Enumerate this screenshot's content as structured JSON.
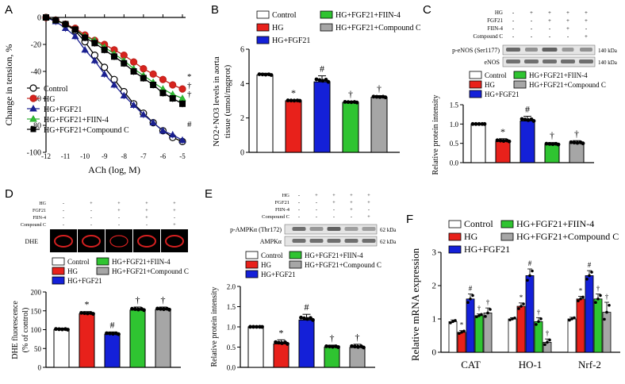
{
  "colors": {
    "control": "#ffffff",
    "hg": "#e8211b",
    "hg_fgf21": "#1420d8",
    "hg_fgf21_fiin4": "#2fc431",
    "hg_fgf21_compc": "#a6a6a6",
    "blot_bg": "#e4e4e4"
  },
  "legend_labels": [
    "Control",
    "HG",
    "HG+FGF21",
    "HG+FGF21+FIIN-4",
    "HG+FGF21+Compound C"
  ],
  "treatment_table": {
    "row_labels": [
      "HG",
      "FGF21",
      "FIIN-4",
      "Compound C"
    ],
    "columns": [
      [
        "-",
        "-",
        "-",
        "-"
      ],
      [
        "+",
        "-",
        "-",
        "-"
      ],
      [
        "+",
        "+",
        "-",
        "-"
      ],
      [
        "+",
        "+",
        "+",
        "-"
      ],
      [
        "+",
        "+",
        "-",
        "+"
      ]
    ]
  },
  "chart_data": [
    {
      "panel": "A",
      "type": "line",
      "xlabel": "ACh (log, M)",
      "ylabel": "Change in tension, %",
      "xlim": [
        -12,
        -5
      ],
      "ylim": [
        -100,
        0
      ],
      "x_ticks": [
        "-12",
        "-11",
        "-10",
        "-9",
        "-8",
        "-7",
        "-6",
        "-5"
      ],
      "y_ticks": [
        "0",
        "-20",
        "-40",
        "-60",
        "-80",
        "-100"
      ],
      "x": [
        -12,
        -11.5,
        -11,
        -10.5,
        -10,
        -9.5,
        -9,
        -8.5,
        -8,
        -7.5,
        -7,
        -6.5,
        -6,
        -5.5,
        -5
      ],
      "series": [
        {
          "name": "Control",
          "marker": "circle-open",
          "values": [
            0,
            -2,
            -5,
            -10,
            -18,
            -28,
            -37,
            -46,
            -55,
            -64,
            -71,
            -78,
            -84,
            -89,
            -92
          ],
          "annotation": "#"
        },
        {
          "name": "HG",
          "marker": "circle",
          "values": [
            0,
            -2,
            -5,
            -8,
            -13,
            -17,
            -20,
            -24,
            -28,
            -33,
            -38,
            -42,
            -46,
            -50,
            -53
          ],
          "annotation": "*"
        },
        {
          "name": "HG+FGF21",
          "marker": "triangle",
          "values": [
            0,
            -3,
            -8,
            -14,
            -24,
            -32,
            -42,
            -50,
            -58,
            -65,
            -72,
            -78,
            -84,
            -87,
            -91
          ]
        },
        {
          "name": "HG+FGF21+FIIN-4",
          "marker": "triangle",
          "values": [
            0,
            -2,
            -5,
            -9,
            -14,
            -17,
            -22,
            -27,
            -32,
            -38,
            -43,
            -48,
            -53,
            -57,
            -60
          ],
          "annotation": "†"
        },
        {
          "name": "HG+FGF21+Compound C",
          "marker": "square",
          "values": [
            0,
            -2,
            -5,
            -9,
            -15,
            -19,
            -24,
            -29,
            -34,
            -40,
            -45,
            -50,
            -56,
            -60,
            -64
          ],
          "annotation": "†"
        }
      ]
    },
    {
      "panel": "B",
      "type": "bar",
      "ylabel": "NO2+NO3 levels in aorta tissue (umol/mgprot)",
      "ylim": [
        0,
        6
      ],
      "y_ticks": [
        "0",
        "2",
        "4",
        "6"
      ],
      "categories": [
        "Control",
        "HG",
        "HG+FGF21",
        "HG+FGF21+FIIN-4",
        "HG+FGF21+Compound C"
      ],
      "values": [
        4.5,
        3.0,
        4.1,
        2.9,
        3.2
      ],
      "errors": [
        0.1,
        0.05,
        0.35,
        0.08,
        0.1
      ],
      "annotations": [
        "",
        "*",
        "#",
        "†",
        "†"
      ]
    },
    {
      "panel": "C",
      "type": "bar",
      "ylabel": "Relative protein intensity",
      "ylim": [
        0,
        1.5
      ],
      "y_ticks": [
        "0.0",
        "0.5",
        "1.0",
        "1.5"
      ],
      "categories": [
        "Control",
        "HG",
        "HG+FGF21",
        "HG+FGF21+FIIN-4",
        "HG+FGF21+Compound C"
      ],
      "values": [
        1.0,
        0.55,
        1.08,
        0.47,
        0.5
      ],
      "errors": [
        0.0,
        0.07,
        0.12,
        0.05,
        0.07
      ],
      "annotations": [
        "",
        "*",
        "#",
        "†",
        "†"
      ],
      "blot_labels": [
        "p-eNOS (Ser1177)",
        "eNOS"
      ],
      "blot_kda": [
        "140 kDa",
        "140 kDa"
      ]
    },
    {
      "panel": "D",
      "type": "bar",
      "ylabel": "DHE fluorescence (% of control)",
      "ylim": [
        0,
        200
      ],
      "y_ticks": [
        "0",
        "50",
        "100",
        "150",
        "200"
      ],
      "categories": [
        "Control",
        "HG",
        "HG+FGF21",
        "HG+FGF21+FIIN-4",
        "HG+FGF21+Compound C"
      ],
      "values": [
        100,
        142,
        88,
        152,
        153
      ],
      "errors": [
        4,
        6,
        6,
        8,
        7
      ],
      "annotations": [
        "",
        "*",
        "#",
        "†",
        "†"
      ],
      "image_label": "DHE"
    },
    {
      "panel": "E",
      "type": "bar",
      "ylabel": "Relative protein intensity",
      "ylim": [
        0,
        2.0
      ],
      "y_ticks": [
        "0.0",
        "0.5",
        "1.0",
        "1.5",
        "2.0"
      ],
      "categories": [
        "Control",
        "HG",
        "HG+FGF21",
        "HG+FGF21+FIIN-4",
        "HG+FGF21+Compound C"
      ],
      "values": [
        1.0,
        0.58,
        1.17,
        0.5,
        0.49
      ],
      "errors": [
        0.0,
        0.1,
        0.14,
        0.05,
        0.08
      ],
      "annotations": [
        "",
        "*",
        "#",
        "†",
        "†"
      ],
      "blot_labels": [
        "p-AMPKα (Thr172)",
        "AMPKα"
      ],
      "blot_kda": [
        "62 kDa",
        "62 kDa"
      ]
    },
    {
      "panel": "F",
      "type": "bar",
      "ylabel": "Relative mRNA expression",
      "ylim": [
        0,
        3
      ],
      "y_ticks": [
        "0",
        "1",
        "2",
        "3"
      ],
      "categories": [
        "CAT",
        "HO-1",
        "Nrf-2"
      ],
      "series": [
        {
          "name": "Control",
          "values": [
            0.92,
            1.0,
            1.0
          ],
          "errors": [
            0.05,
            0.04,
            0.05
          ],
          "annotations": [
            "",
            "",
            ""
          ]
        },
        {
          "name": "HG",
          "values": [
            0.6,
            1.38,
            1.6
          ],
          "errors": [
            0.05,
            0.1,
            0.08
          ],
          "annotations": [
            "*",
            "*",
            "*"
          ]
        },
        {
          "name": "HG+FGF21",
          "values": [
            1.6,
            2.3,
            2.3
          ],
          "errors": [
            0.15,
            0.2,
            0.15
          ],
          "annotations": [
            "#",
            "#",
            "#"
          ]
        },
        {
          "name": "HG+FGF21+FIIN-4",
          "values": [
            1.1,
            0.92,
            1.6
          ],
          "errors": [
            0.05,
            0.12,
            0.15
          ],
          "annotations": [
            "†",
            "†",
            "†"
          ]
        },
        {
          "name": "HG+FGF21+Compound C",
          "values": [
            1.18,
            0.3,
            1.2
          ],
          "errors": [
            0.15,
            0.1,
            0.3
          ],
          "annotations": [
            "†",
            "†",
            "†"
          ]
        }
      ]
    }
  ],
  "panel_letters": [
    "A",
    "B",
    "C",
    "D",
    "E",
    "F"
  ]
}
